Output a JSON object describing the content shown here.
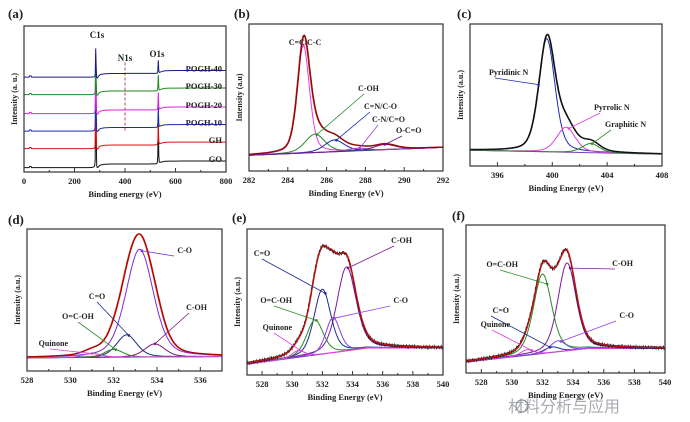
{
  "figure": {
    "watermark": "材料分析与应用"
  },
  "chart_data": [
    {
      "id": "a",
      "panel_label": "(a)",
      "type": "line",
      "xlabel": "Binding energy (eV)",
      "ylabel": "Intensity (a. u.)",
      "xlim": [
        0,
        800
      ],
      "ylim": [
        0,
        100
      ],
      "xticks": [
        0,
        200,
        400,
        600,
        800
      ],
      "peak_labels": [
        "C1s",
        "N1s",
        "O1s"
      ],
      "n1s_marker": 400,
      "series": [
        {
          "name": "GO",
          "color": "#111111",
          "offset": 3,
          "c1s": 72,
          "o1s": 30
        },
        {
          "name": "GH",
          "color": "#e01010",
          "offset": 16,
          "c1s": 40,
          "o1s": 14
        },
        {
          "name": "POGH-10",
          "color": "#1a2bb0",
          "offset": 28,
          "c1s": 50,
          "o1s": 14
        },
        {
          "name": "POGH-20",
          "color": "#e020e0",
          "offset": 40,
          "c1s": 38,
          "o1s": 12
        },
        {
          "name": "POGH-30",
          "color": "#1f8a1f",
          "offset": 53,
          "c1s": 32,
          "o1s": 11
        },
        {
          "name": "POGH-40",
          "color": "#1a1a8a",
          "offset": 65,
          "c1s": 23,
          "o1s": 9
        }
      ]
    },
    {
      "id": "b",
      "panel_label": "(b)",
      "type": "line",
      "xlabel": "Binding Energy (eV)",
      "ylabel": "Intensity (a.u)",
      "xlim": [
        282,
        292
      ],
      "ylim": [
        -12,
        100
      ],
      "xticks": [
        282,
        284,
        286,
        288,
        290,
        292
      ],
      "baseline": [
        [
          282,
          0
        ],
        [
          292,
          6
        ]
      ],
      "envelope_color": "#8b0a0a",
      "data_color": "#e83030",
      "peaks": [
        {
          "name": "C=C/C-C",
          "center": 284.8,
          "fwhm": 0.75,
          "height": 82,
          "color": "#e040e0"
        },
        {
          "name": "C-OH",
          "center": 285.4,
          "fwhm": 1.2,
          "height": 14,
          "color": "#2a8a2a"
        },
        {
          "name": "C=N/C-O",
          "center": 286.4,
          "fwhm": 1.2,
          "height": 9,
          "color": "#1a2bb0"
        },
        {
          "name": "C-N/C=O",
          "center": 287.6,
          "fwhm": 1.2,
          "height": 2,
          "color": "#9a40e0"
        },
        {
          "name": "O-C=O",
          "center": 289.0,
          "fwhm": 1.3,
          "height": 4,
          "color": "#6a1a8a"
        }
      ]
    },
    {
      "id": "c",
      "panel_label": "(c)",
      "type": "line",
      "xlabel": "Binding Energy (eV)",
      "ylabel": "Intensity (a.u.)",
      "xlim": [
        394,
        408
      ],
      "ylim": [
        -8,
        100
      ],
      "xticks": [
        396,
        400,
        404,
        408
      ],
      "baseline": [
        [
          394,
          4
        ],
        [
          408,
          1
        ]
      ],
      "envelope_color": "#111111",
      "data_color": "#111111",
      "peaks": [
        {
          "name": "Pyridinic N",
          "center": 399.6,
          "fwhm": 1.4,
          "height": 86,
          "color": "#1a2bb0"
        },
        {
          "name": "Pyrrolic N",
          "center": 401.0,
          "fwhm": 1.6,
          "height": 19,
          "color": "#e040e0"
        },
        {
          "name": "Graphitic N",
          "center": 402.8,
          "fwhm": 1.5,
          "height": 7,
          "color": "#2a8a2a"
        }
      ]
    },
    {
      "id": "d",
      "panel_label": "(d)",
      "type": "line",
      "xlabel": "Binding Energy (eV)",
      "ylabel": "Intensity (a.u.)",
      "xlim": [
        528,
        537
      ],
      "ylim": [
        -8,
        100
      ],
      "xticks": [
        528,
        530,
        532,
        534,
        536
      ],
      "baseline": [
        [
          528,
          2
        ],
        [
          537,
          3
        ]
      ],
      "envelope_color": "#b00000",
      "data_color": "#e86a40",
      "peaks": [
        {
          "name": "C-O",
          "center": 533.2,
          "fwhm": 1.5,
          "height": 82,
          "color": "#7a2ae0"
        },
        {
          "name": "C-OH",
          "center": 533.9,
          "fwhm": 1.1,
          "height": 10,
          "color": "#7a1a7a"
        },
        {
          "name": "C=O",
          "center": 532.6,
          "fwhm": 1.1,
          "height": 17,
          "color": "#1a2b80"
        },
        {
          "name": "O=C-OH",
          "center": 532.0,
          "fwhm": 1.0,
          "height": 6,
          "color": "#2a8a2a"
        },
        {
          "name": "Quinone",
          "center": 531.0,
          "fwhm": 1.0,
          "height": 3,
          "color": "#e040e0"
        }
      ]
    },
    {
      "id": "e",
      "panel_label": "(e)",
      "type": "line",
      "xlabel": "Binding Energy (eV)",
      "ylabel": "Intensity (a.u.)",
      "xlim": [
        527,
        540
      ],
      "ylim": [
        -8,
        100
      ],
      "xticks": [
        528,
        530,
        532,
        534,
        536,
        538,
        540
      ],
      "baseline": [
        [
          527,
          0
        ],
        [
          535,
          12
        ],
        [
          540,
          12
        ]
      ],
      "envelope_color": "#c01010",
      "data_color": "#111111",
      "peaks": [
        {
          "name": "C-OH",
          "center": 533.6,
          "fwhm": 1.5,
          "height": 62,
          "color": "#7a1a9a"
        },
        {
          "name": "C=O",
          "center": 532.0,
          "fwhm": 1.3,
          "height": 48,
          "color": "#1a2b90"
        },
        {
          "name": "O=C-OH",
          "center": 531.5,
          "fwhm": 1.3,
          "height": 26,
          "color": "#2a8a2a"
        },
        {
          "name": "C-O",
          "center": 532.7,
          "fwhm": 1.1,
          "height": 26,
          "color": "#8a40e0"
        },
        {
          "name": "Quinone",
          "center": 530.4,
          "fwhm": 1.0,
          "height": 5,
          "color": "#e040e0"
        }
      ]
    },
    {
      "id": "f",
      "panel_label": "(f)",
      "type": "line",
      "xlabel": "Binding Energy (eV)",
      "ylabel": "Intensity (a.u.)",
      "xlim": [
        527,
        540
      ],
      "ylim": [
        -8,
        100
      ],
      "xticks": [
        528,
        530,
        532,
        534,
        536,
        538,
        540
      ],
      "baseline": [
        [
          527,
          0
        ],
        [
          535,
          10
        ],
        [
          540,
          10
        ]
      ],
      "envelope_color": "#c01010",
      "data_color": "#111111",
      "peaks": [
        {
          "name": "C-OH",
          "center": 533.6,
          "fwhm": 1.4,
          "height": 64,
          "color": "#7a1a9a"
        },
        {
          "name": "O=C-OH",
          "center": 532.0,
          "fwhm": 1.4,
          "height": 58,
          "color": "#2a8a2a"
        },
        {
          "name": "C=O",
          "center": 532.6,
          "fwhm": 1.2,
          "height": 4,
          "color": "#1a2b90"
        },
        {
          "name": "C-O",
          "center": 533.0,
          "fwhm": 1.2,
          "height": 8,
          "color": "#8a40e0"
        },
        {
          "name": "Quinone",
          "center": 531.0,
          "fwhm": 1.0,
          "height": 4,
          "color": "#e040e0"
        }
      ]
    }
  ]
}
